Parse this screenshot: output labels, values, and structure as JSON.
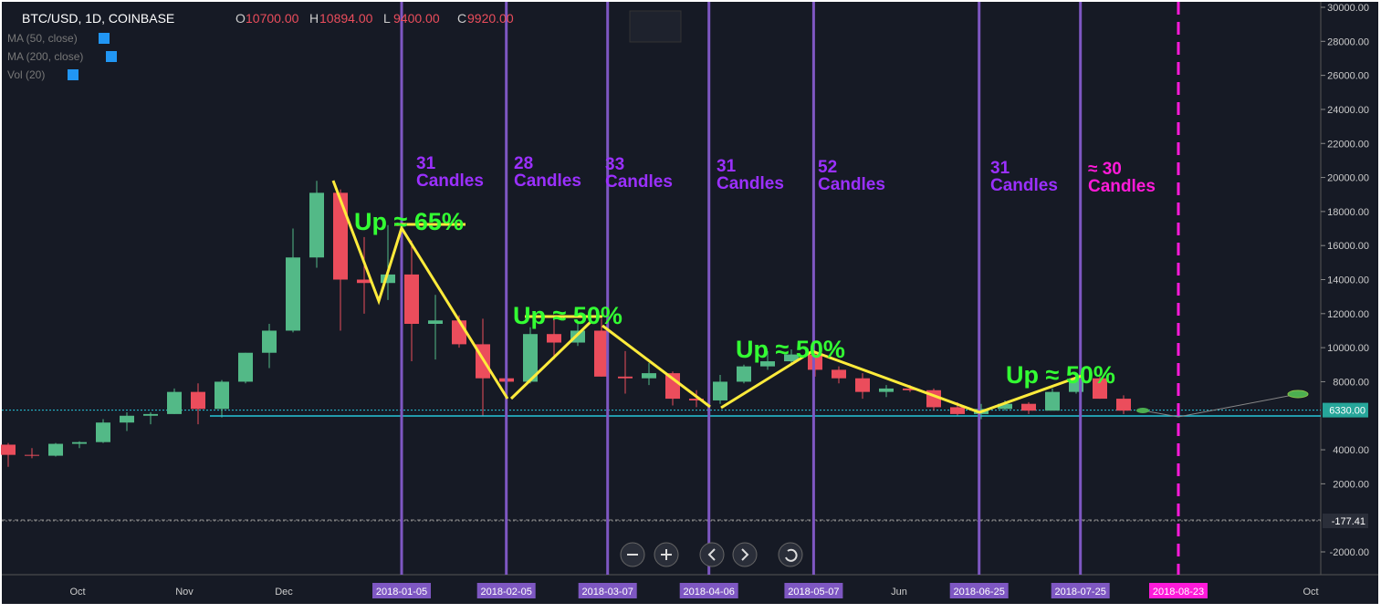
{
  "header": {
    "symbol": "BTC/USD, 1D, COINBASE",
    "ohlc": [
      [
        "O",
        "10700.00"
      ],
      [
        "H",
        "10894.00"
      ],
      [
        "L",
        "9400.00"
      ],
      [
        "C",
        "9920.00"
      ]
    ],
    "indicators": [
      "MA (50, close)",
      "MA (200, close)",
      "Vol (20)"
    ]
  },
  "chart_data": {
    "type": "candlestick",
    "open": [
      4300,
      3700,
      3650,
      4350,
      4450,
      5600,
      6000,
      6100,
      7400,
      6400,
      8000,
      9700,
      11000,
      15300,
      19100,
      14000,
      13800,
      14300,
      11400,
      11600,
      10200,
      8200,
      8000,
      10800,
      10300,
      11000,
      8300,
      8200,
      8500,
      7000,
      6900,
      8000,
      8900,
      9200,
      9600,
      8700,
      8200,
      7400,
      7600,
      7500,
      6500,
      6100,
      6400,
      6700,
      6300,
      7400,
      8200,
      7000
    ],
    "high": [
      4400,
      4100,
      4400,
      4500,
      5800,
      6200,
      6200,
      7600,
      7900,
      8100,
      9700,
      11400,
      17000,
      19800,
      19300,
      16500,
      17200,
      16300,
      13100,
      11900,
      11700,
      9000,
      11200,
      11700,
      11500,
      11700,
      9800,
      9100,
      8600,
      7500,
      8400,
      9000,
      9800,
      9900,
      9700,
      8900,
      8500,
      7800,
      7800,
      7600,
      6800,
      6700,
      6900,
      6800,
      7600,
      8500,
      8300,
      7200
    ],
    "low": [
      3000,
      3500,
      3600,
      4100,
      4400,
      5100,
      5500,
      6100,
      5500,
      5900,
      7900,
      8800,
      10900,
      14700,
      11000,
      12000,
      12800,
      9200,
      9300,
      10000,
      6000,
      6000,
      7900,
      9300,
      10100,
      8300,
      7300,
      7800,
      6600,
      6500,
      6700,
      7900,
      8700,
      9000,
      8300,
      7900,
      7000,
      7100,
      7400,
      6300,
      6000,
      5800,
      6300,
      6100,
      6300,
      7300,
      7000,
      6100
    ],
    "close": [
      3700,
      3650,
      4350,
      4450,
      5600,
      6000,
      6100,
      7400,
      6400,
      8000,
      9700,
      11000,
      15300,
      19100,
      14000,
      13800,
      14300,
      11400,
      11600,
      10200,
      8200,
      8000,
      10800,
      10300,
      11000,
      8300,
      8200,
      8500,
      7000,
      6900,
      8000,
      8900,
      9200,
      9600,
      8700,
      8200,
      7400,
      7600,
      7500,
      6500,
      6100,
      6400,
      6700,
      6300,
      7400,
      8200,
      7000,
      6300
    ],
    "ylim": [
      -3340,
      30000
    ],
    "yticks": [
      {
        "value": 30000,
        "label": "30000.00"
      },
      {
        "value": 28000,
        "label": "28000.00"
      },
      {
        "value": 26000,
        "label": "26000.00"
      },
      {
        "value": 24000,
        "label": "24000.00"
      },
      {
        "value": 22000,
        "label": "22000.00"
      },
      {
        "value": 20000,
        "label": "20000.00"
      },
      {
        "value": 18000,
        "label": "18000.00"
      },
      {
        "value": 16000,
        "label": "16000.00"
      },
      {
        "value": 14000,
        "label": "14000.00"
      },
      {
        "value": 12000,
        "label": "12000.00"
      },
      {
        "value": 10000,
        "label": "10000.00"
      },
      {
        "value": 8000,
        "label": "8000.00"
      },
      {
        "value": 4000,
        "label": "4000.00"
      },
      {
        "value": 2000,
        "label": "2000.00"
      },
      {
        "value": -2000,
        "label": "-2000.00"
      }
    ],
    "price_tags": [
      {
        "value": 6330,
        "label": "6330.00"
      },
      {
        "value": -177.41,
        "label": "-177.41"
      }
    ],
    "months": [
      "Oct",
      "Nov",
      "Dec",
      "Jun",
      "Oct"
    ],
    "marker_dates": [
      "2018-01-05",
      "2018-02-05",
      "2018-03-07",
      "2018-04-06",
      "2018-05-07",
      "2018-06-25",
      "2018-07-25",
      "2018-08-23"
    ],
    "candle_notes": [
      [
        "31",
        "Candles"
      ],
      [
        "28",
        "Candles"
      ],
      [
        "33",
        "Candles"
      ],
      [
        "31",
        "Candles"
      ],
      [
        "52",
        "Candles"
      ],
      [
        "31",
        "Candles"
      ],
      [
        "≈ 30",
        "Candles"
      ]
    ],
    "gain_notes": [
      "Up ≈ 65%",
      "Up ≈ 50%",
      "Up ≈ 50%",
      "Up ≈ 50%"
    ]
  }
}
